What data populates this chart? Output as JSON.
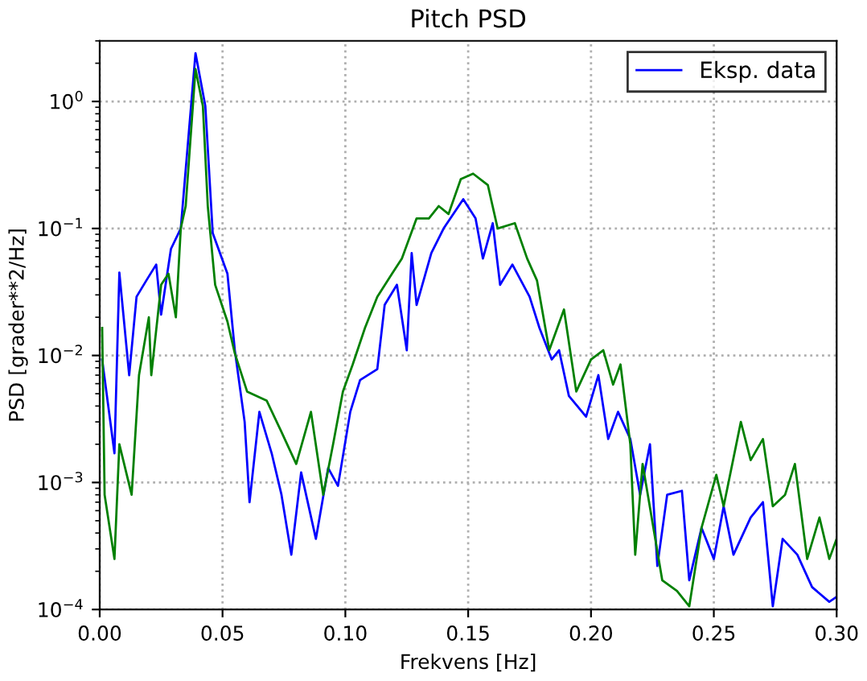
{
  "chart_data": {
    "type": "line",
    "title": "Pitch PSD",
    "xlabel": "Frekvens [Hz]",
    "ylabel": "PSD [grader**2/Hz]",
    "log": "y",
    "grid": true,
    "legend": "top right",
    "line_style": "solid",
    "xlim": [
      0,
      0.3
    ],
    "ylim": [
      0.0001,
      3
    ],
    "xticks": [
      {
        "value": 0,
        "label": "0.00"
      },
      {
        "value": 0.05,
        "label": "0.05"
      },
      {
        "value": 0.1,
        "label": "0.10"
      },
      {
        "value": 0.15,
        "label": "0.15"
      },
      {
        "value": 0.2,
        "label": "0.20"
      },
      {
        "value": 0.25,
        "label": "0.25"
      },
      {
        "value": 0.3,
        "label": "0.30"
      }
    ],
    "yticks": [
      {
        "value": 0.0001,
        "label": "10$^{−4}$"
      },
      {
        "value": 0.001,
        "label": "10$^{−3}$"
      },
      {
        "value": 0.01,
        "label": "10$^{−2}$"
      },
      {
        "value": 0.1,
        "label": "10$^{−1}$"
      },
      {
        "value": 1,
        "label": "10$^{0}$"
      }
    ],
    "series": [
      {
        "name": "Eksp. data",
        "color": "#0000ff",
        "x": [
          0.001,
          0.006,
          0.008,
          0.012,
          0.015,
          0.019,
          0.023,
          0.025,
          0.029,
          0.033,
          0.035,
          0.039,
          0.043,
          0.046,
          0.052,
          0.055,
          0.059,
          0.061,
          0.065,
          0.07,
          0.074,
          0.078,
          0.082,
          0.088,
          0.093,
          0.097,
          0.102,
          0.106,
          0.113,
          0.116,
          0.121,
          0.125,
          0.127,
          0.129,
          0.135,
          0.14,
          0.148,
          0.153,
          0.156,
          0.16,
          0.163,
          0.168,
          0.175,
          0.179,
          0.184,
          0.187,
          0.191,
          0.198,
          0.203,
          0.207,
          0.211,
          0.216,
          0.22,
          0.224,
          0.227,
          0.231,
          0.237,
          0.24,
          0.245,
          0.25,
          0.254,
          0.258,
          0.265,
          0.27,
          0.274,
          0.278,
          0.284,
          0.29,
          0.297,
          0.3
        ],
        "values": [
          0.0093,
          0.0017,
          0.045,
          0.007,
          0.029,
          0.039,
          0.052,
          0.021,
          0.069,
          0.1,
          0.29,
          2.4,
          0.92,
          0.092,
          0.044,
          0.011,
          0.003,
          0.0007,
          0.0036,
          0.0017,
          0.0008,
          0.00027,
          0.0012,
          0.00036,
          0.0013,
          0.00094,
          0.0036,
          0.0064,
          0.0078,
          0.025,
          0.036,
          0.011,
          0.064,
          0.025,
          0.064,
          0.1,
          0.17,
          0.12,
          0.058,
          0.11,
          0.036,
          0.052,
          0.029,
          0.0165,
          0.0093,
          0.011,
          0.0048,
          0.0033,
          0.007,
          0.0022,
          0.0036,
          0.0022,
          0.0008,
          0.002,
          0.00022,
          0.0008,
          0.00086,
          0.00017,
          0.00044,
          0.00025,
          0.00065,
          0.00027,
          0.00053,
          0.0007,
          0.000106,
          0.00036,
          0.00027,
          0.00015,
          0.000115,
          0.000126
        ]
      },
      {
        "color": "#008000",
        "x": [
          0.001,
          0.002,
          0.006,
          0.008,
          0.013,
          0.016,
          0.02,
          0.021,
          0.025,
          0.028,
          0.031,
          0.033,
          0.035,
          0.039,
          0.042,
          0.044,
          0.047,
          0.052,
          0.055,
          0.06,
          0.068,
          0.074,
          0.08,
          0.086,
          0.091,
          0.095,
          0.099,
          0.103,
          0.108,
          0.113,
          0.119,
          0.123,
          0.129,
          0.134,
          0.138,
          0.142,
          0.147,
          0.152,
          0.158,
          0.162,
          0.169,
          0.174,
          0.178,
          0.183,
          0.189,
          0.194,
          0.2,
          0.205,
          0.209,
          0.212,
          0.216,
          0.218,
          0.221,
          0.229,
          0.235,
          0.24,
          0.245,
          0.251,
          0.254,
          0.261,
          0.265,
          0.27,
          0.274,
          0.279,
          0.283,
          0.288,
          0.293,
          0.297,
          0.3
        ],
        "values": [
          0.0165,
          0.0008,
          0.00025,
          0.002,
          0.0008,
          0.007,
          0.02,
          0.007,
          0.036,
          0.044,
          0.02,
          0.1,
          0.15,
          1.8,
          0.92,
          0.15,
          0.036,
          0.0185,
          0.0104,
          0.0052,
          0.0044,
          0.0025,
          0.0014,
          0.0036,
          0.0008,
          0.002,
          0.0052,
          0.0085,
          0.0165,
          0.029,
          0.044,
          0.058,
          0.12,
          0.12,
          0.15,
          0.13,
          0.245,
          0.27,
          0.22,
          0.1,
          0.11,
          0.058,
          0.039,
          0.011,
          0.023,
          0.0052,
          0.0093,
          0.011,
          0.0059,
          0.0085,
          0.002,
          0.00027,
          0.0014,
          0.00017,
          0.00014,
          0.000106,
          0.00044,
          0.00115,
          0.00065,
          0.003,
          0.0015,
          0.0022,
          0.00065,
          0.0008,
          0.0014,
          0.00025,
          0.00053,
          0.00025,
          0.00036
        ]
      }
    ]
  }
}
